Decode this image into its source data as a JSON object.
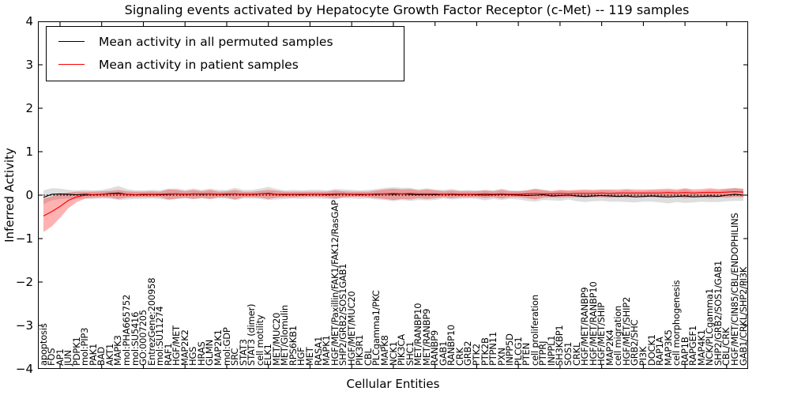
{
  "figure": {
    "title": "Signaling events activated by Hepatocyte Growth Factor Receptor (c-Met) -- 119 samples",
    "xlabel": "Cellular Entities",
    "ylabel": "Inferred Activity",
    "legend": [
      {
        "label": "Mean activity in all permuted samples",
        "color": "#000000"
      },
      {
        "label": "Mean activity in patient samples",
        "color": "#ff0000"
      }
    ]
  },
  "chart_data": {
    "type": "line",
    "title": "Signaling events activated by Hepatocyte Growth Factor Receptor (c-Met) -- 119 samples",
    "xlabel": "Cellular Entities",
    "ylabel": "Inferred Activity",
    "ylim": [
      -4,
      4
    ],
    "yticks": [
      4,
      3,
      2,
      1,
      0,
      -1,
      -2,
      -3,
      -4
    ],
    "grid": false,
    "legend_position": "upper left",
    "zero_reference_line": {
      "value": 0,
      "style": "dotted",
      "color": "#000000"
    },
    "categories": [
      "apoptosis",
      "FOS",
      "AP1",
      "JUN",
      "PDPK1",
      "mol:PIP3",
      "PAK1",
      "BAD",
      "AKT1",
      "MAPK3",
      "mol:PHA665752",
      "mol:SU5416",
      "GO:0007205",
      "EntrezGene:200958",
      "mol:SU11274",
      "RAF1",
      "HGF/MET",
      "MAP2K2",
      "HGS",
      "HRAS",
      "GLMN",
      "MAP2K1",
      "mol:GDP",
      "SRC",
      "STAT3",
      "STAT3 (dimer)",
      "cell motility",
      "ELK1",
      "MET/MUC20",
      "MET/Glomulin",
      "RPS6KB1",
      "HGF",
      "MET",
      "RASA1",
      "MAPK1",
      "HGF/MET/Paxillin/FAK1/FAK12/RasGAP",
      "SHP2/GRB2/SOS1GAB1",
      "HGF/MET/MUC20",
      "PIK3R1",
      "CBL",
      "PLCgamma1/PKC",
      "MAPK8",
      "NCK1",
      "PIK3CA",
      "SHC1",
      "MET/RANBP10",
      "MET/RANBP9",
      "RANBP9",
      "GAB1",
      "RANBP10",
      "CRK",
      "GRB2",
      "PTK2",
      "PTK2B",
      "PTPN11",
      "PXN",
      "INPP5D",
      "PLCG1",
      "PTEN",
      "cell proliferation",
      "PTPRJ",
      "INPPL1",
      "SH3KBP1",
      "SOS1",
      "CRKL",
      "HGF/MET/RANBP9",
      "HGF/MET/RANBP10",
      "HGF/MET/SHIP",
      "MAP2K4",
      "cell migration",
      "HGF/MET/SHIP2",
      "GRB2/SHC",
      "PI3K",
      "DOCK1",
      "RAP1A",
      "MAP3K5",
      "cell morphogenesis",
      "RAP1B",
      "RAPGEF1",
      "MAP4K1",
      "NCK/PLCgamma1",
      "SHP2/GRB2/SOS1/GAB1",
      "CBL/CRK",
      "HGF/MET/CIN85/CBL/ENDOPHILINS",
      "GAB1/CRKL/SHP2/PI3K"
    ],
    "series": [
      {
        "name": "Mean activity in all permuted samples",
        "color": "#000000",
        "style": "solid",
        "values": [
          -0.05,
          0.02,
          0.03,
          0.02,
          0.01,
          0.02,
          0.01,
          0.02,
          0.04,
          0.05,
          0.02,
          0.01,
          0.01,
          0.02,
          0.01,
          0.02,
          0.03,
          0.02,
          0.03,
          0.02,
          0.03,
          0.02,
          0.02,
          0.03,
          0.02,
          0.02,
          0.03,
          0.04,
          0.02,
          0.01,
          0.02,
          0.01,
          0.02,
          0.02,
          0.01,
          0.02,
          0.03,
          0.02,
          0.01,
          0.02,
          0.02,
          0.03,
          0.02,
          0.03,
          0.02,
          0.01,
          0.02,
          0.01,
          0.02,
          0.02,
          0.01,
          0.02,
          0.01,
          0.0,
          0.01,
          0.02,
          0.01,
          0.0,
          -0.01,
          0.0,
          0.01,
          -0.02,
          -0.01,
          0.0,
          -0.02,
          -0.03,
          -0.02,
          -0.01,
          -0.02,
          -0.03,
          -0.02,
          -0.04,
          -0.03,
          -0.02,
          -0.03,
          -0.04,
          -0.03,
          -0.02,
          -0.04,
          -0.03,
          -0.02,
          -0.03,
          0.0,
          0.02,
          0.0
        ]
      },
      {
        "name": "Permuted samples band (mean +/- spread)",
        "type": "band",
        "color": "#aaaaaa",
        "half_width": [
          0.16,
          0.14,
          0.12,
          0.1,
          0.1,
          0.1,
          0.1,
          0.1,
          0.12,
          0.16,
          0.12,
          0.1,
          0.1,
          0.1,
          0.1,
          0.13,
          0.12,
          0.1,
          0.12,
          0.1,
          0.12,
          0.1,
          0.1,
          0.14,
          0.1,
          0.1,
          0.12,
          0.15,
          0.12,
          0.1,
          0.1,
          0.1,
          0.1,
          0.1,
          0.1,
          0.12,
          0.1,
          0.1,
          0.1,
          0.1,
          0.12,
          0.14,
          0.16,
          0.14,
          0.15,
          0.12,
          0.14,
          0.12,
          0.1,
          0.12,
          0.1,
          0.1,
          0.1,
          0.12,
          0.1,
          0.13,
          0.1,
          0.1,
          0.12,
          0.15,
          0.12,
          0.1,
          0.12,
          0.1,
          0.12,
          0.13,
          0.12,
          0.12,
          0.13,
          0.12,
          0.14,
          0.13,
          0.12,
          0.13,
          0.14,
          0.15,
          0.13,
          0.16,
          0.13,
          0.12,
          0.14,
          0.13,
          0.14,
          0.15,
          0.13
        ]
      },
      {
        "name": "Mean activity in patient samples",
        "color": "#ff0000",
        "style": "solid",
        "values": [
          -0.48,
          -0.38,
          -0.26,
          -0.12,
          -0.04,
          0.0,
          0.01,
          0.02,
          0.03,
          0.03,
          0.02,
          0.01,
          0.02,
          0.02,
          0.02,
          0.03,
          0.03,
          0.02,
          0.03,
          0.03,
          0.03,
          0.02,
          0.03,
          0.03,
          0.02,
          0.02,
          0.03,
          0.03,
          0.02,
          0.02,
          0.02,
          0.02,
          0.02,
          0.02,
          0.02,
          0.03,
          0.03,
          0.02,
          0.02,
          0.02,
          0.03,
          0.03,
          0.04,
          0.03,
          0.04,
          0.03,
          0.03,
          0.03,
          0.02,
          0.03,
          0.02,
          0.02,
          0.02,
          0.03,
          0.02,
          0.03,
          0.02,
          0.02,
          0.03,
          0.04,
          0.03,
          0.03,
          0.04,
          0.03,
          0.04,
          0.04,
          0.04,
          0.05,
          0.04,
          0.05,
          0.05,
          0.05,
          0.05,
          0.05,
          0.05,
          0.06,
          0.05,
          0.06,
          0.05,
          0.06,
          0.06,
          0.06,
          0.07,
          0.08,
          0.07
        ]
      },
      {
        "name": "Patient samples band (mean +/- spread)",
        "type": "band",
        "color": "#ff0000",
        "low": [
          -0.85,
          -0.72,
          -0.52,
          -0.3,
          -0.16,
          -0.08,
          -0.06,
          -0.05,
          -0.06,
          -0.09,
          -0.06,
          -0.05,
          -0.05,
          -0.05,
          -0.05,
          -0.1,
          -0.08,
          -0.06,
          -0.09,
          -0.06,
          -0.09,
          -0.05,
          -0.06,
          -0.1,
          -0.05,
          -0.05,
          -0.06,
          -0.09,
          -0.06,
          -0.05,
          -0.05,
          -0.04,
          -0.04,
          -0.04,
          -0.05,
          -0.08,
          -0.05,
          -0.04,
          -0.04,
          -0.05,
          -0.07,
          -0.09,
          -0.11,
          -0.09,
          -0.1,
          -0.07,
          -0.09,
          -0.07,
          -0.05,
          -0.07,
          -0.05,
          -0.05,
          -0.05,
          -0.07,
          -0.05,
          -0.08,
          -0.05,
          -0.05,
          -0.07,
          -0.1,
          -0.06,
          -0.05,
          -0.06,
          -0.05,
          -0.05,
          -0.06,
          -0.05,
          -0.05,
          -0.06,
          -0.05,
          -0.06,
          -0.05,
          -0.05,
          -0.05,
          -0.06,
          -0.06,
          -0.05,
          -0.07,
          -0.05,
          -0.05,
          -0.07,
          -0.05,
          -0.06,
          -0.04,
          -0.05
        ],
        "high": [
          -0.08,
          -0.03,
          0.03,
          0.06,
          0.08,
          0.08,
          0.08,
          0.09,
          0.1,
          0.12,
          0.09,
          0.08,
          0.08,
          0.09,
          0.08,
          0.13,
          0.12,
          0.09,
          0.12,
          0.09,
          0.12,
          0.08,
          0.09,
          0.12,
          0.08,
          0.08,
          0.1,
          0.12,
          0.1,
          0.08,
          0.08,
          0.08,
          0.08,
          0.08,
          0.08,
          0.11,
          0.09,
          0.08,
          0.08,
          0.08,
          0.11,
          0.13,
          0.15,
          0.13,
          0.14,
          0.11,
          0.13,
          0.11,
          0.09,
          0.11,
          0.09,
          0.09,
          0.09,
          0.11,
          0.09,
          0.12,
          0.09,
          0.09,
          0.11,
          0.14,
          0.11,
          0.1,
          0.12,
          0.11,
          0.12,
          0.13,
          0.12,
          0.13,
          0.13,
          0.13,
          0.14,
          0.13,
          0.13,
          0.13,
          0.14,
          0.15,
          0.13,
          0.16,
          0.13,
          0.14,
          0.16,
          0.14,
          0.15,
          0.16,
          0.15
        ]
      }
    ]
  }
}
